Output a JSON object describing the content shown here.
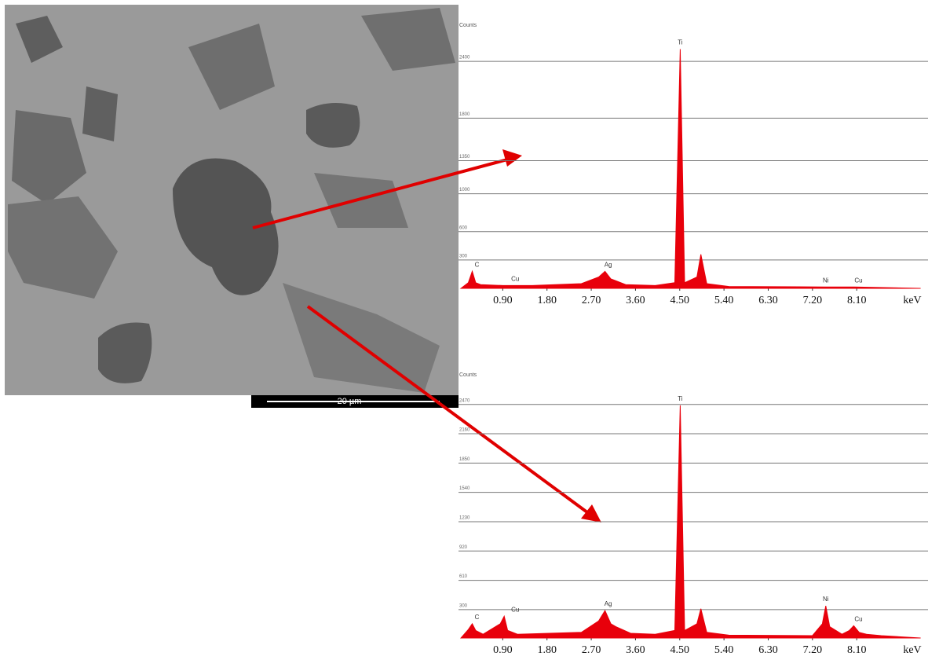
{
  "image": {
    "scale_bar": "20 µm"
  },
  "chart_data": [
    {
      "type": "area",
      "y_label": "Counts",
      "x_label": "keV",
      "color": "#e8000b",
      "x": [
        0.05,
        0.2,
        0.28,
        0.35,
        0.45,
        0.9,
        1.5,
        2.5,
        2.85,
        2.98,
        3.1,
        3.2,
        3.4,
        4.0,
        4.4,
        4.51,
        4.6,
        4.85,
        4.93,
        5.05,
        5.5,
        7.47,
        8.05,
        9.4
      ],
      "values": [
        0,
        60,
        180,
        60,
        40,
        30,
        30,
        50,
        120,
        180,
        100,
        80,
        40,
        30,
        60,
        2530,
        60,
        120,
        360,
        50,
        20,
        15,
        15,
        0
      ],
      "annotations": [
        "C",
        "Cu",
        "Ag",
        "Ti",
        "Ni",
        "Cu"
      ],
      "xlim": [
        0,
        9.55
      ],
      "ylim": [
        0,
        2800
      ],
      "xticks": [
        {
          "value": 0.9,
          "label": "0.90"
        },
        {
          "value": 1.8,
          "label": "1.80"
        },
        {
          "value": 2.7,
          "label": "2.70"
        },
        {
          "value": 3.6,
          "label": "3.60"
        },
        {
          "value": 4.5,
          "label": "4.50"
        },
        {
          "value": 5.4,
          "label": "5.40"
        },
        {
          "value": 6.3,
          "label": "6.30"
        },
        {
          "value": 7.2,
          "label": "7.20"
        },
        {
          "value": 8.1,
          "label": "8.10"
        }
      ],
      "yticks": [
        300,
        600,
        1000,
        1350,
        1800,
        2400
      ],
      "grid": true
    },
    {
      "type": "area",
      "y_label": "Counts",
      "x_label": "keV",
      "color": "#e8000b",
      "x": [
        0.05,
        0.2,
        0.28,
        0.35,
        0.5,
        0.85,
        0.93,
        1.0,
        1.2,
        2.5,
        2.85,
        2.98,
        3.1,
        3.2,
        3.5,
        4.0,
        4.4,
        4.51,
        4.6,
        4.85,
        4.93,
        5.05,
        5.5,
        7.2,
        7.4,
        7.47,
        7.55,
        7.8,
        7.95,
        8.04,
        8.15,
        8.3,
        8.6,
        9.4
      ],
      "values": [
        0,
        90,
        150,
        80,
        40,
        150,
        230,
        80,
        40,
        60,
        180,
        290,
        150,
        120,
        50,
        40,
        80,
        2460,
        80,
        150,
        310,
        60,
        30,
        25,
        150,
        340,
        120,
        40,
        80,
        130,
        60,
        40,
        25,
        0
      ],
      "annotations": [
        "C",
        "Cu",
        "Ag",
        "Ti",
        "Ni",
        "Cu"
      ],
      "xlim": [
        0,
        9.55
      ],
      "ylim": [
        0,
        2800
      ],
      "xticks": [
        {
          "value": 0.9,
          "label": "0.90"
        },
        {
          "value": 1.8,
          "label": "1.80"
        },
        {
          "value": 2.7,
          "label": "2.70"
        },
        {
          "value": 3.6,
          "label": "3.60"
        },
        {
          "value": 4.5,
          "label": "4.50"
        },
        {
          "value": 5.4,
          "label": "5.40"
        },
        {
          "value": 6.3,
          "label": "6.30"
        },
        {
          "value": 7.2,
          "label": "7.20"
        },
        {
          "value": 8.1,
          "label": "8.10"
        }
      ],
      "yticks": [
        300,
        610,
        920,
        1230,
        1540,
        1850,
        2160,
        2470
      ],
      "grid": true
    }
  ]
}
